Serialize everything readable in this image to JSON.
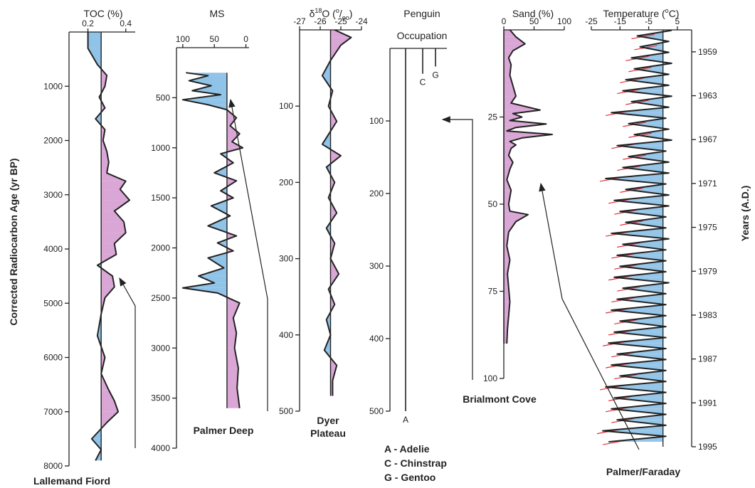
{
  "colors": {
    "warm": "#d9a6d6",
    "cold": "#8fc3e8",
    "ink": "#222222",
    "redline": "#e0303a"
  },
  "y_axis_title": "Corrected Radiocarbon Age (yr BP)",
  "right_axis_title": "Years (A.D.)",
  "chart_data": [
    {
      "type": "area",
      "x_title": "TOC (%)",
      "site": "Lallemand Fiord",
      "xlim": [
        0.1,
        0.45
      ],
      "ylim": [
        0,
        8000
      ],
      "x_reversed": false,
      "baseline": 0.27,
      "x_ticks": [
        "0.2",
        "0.4"
      ],
      "x_tick_values": [
        0.2,
        0.4
      ],
      "y_ticks": [
        "1000",
        "2000",
        "3000",
        "4000",
        "5000",
        "6000",
        "7000",
        "8000"
      ],
      "y_tick_values": [
        1000,
        2000,
        3000,
        4000,
        5000,
        6000,
        7000,
        8000
      ],
      "y": [
        0,
        300,
        600,
        800,
        1000,
        1200,
        1400,
        1600,
        1800,
        2000,
        2200,
        2400,
        2600,
        2750,
        2900,
        3100,
        3300,
        3500,
        3700,
        3900,
        4100,
        4300,
        4500,
        4700,
        4900,
        5200,
        5600,
        6000,
        6300,
        6600,
        6800,
        7000,
        7200,
        7500,
        7700,
        7900
      ],
      "x": [
        0.2,
        0.2,
        0.25,
        0.3,
        0.29,
        0.26,
        0.29,
        0.24,
        0.29,
        0.28,
        0.3,
        0.31,
        0.3,
        0.4,
        0.37,
        0.42,
        0.34,
        0.39,
        0.4,
        0.34,
        0.35,
        0.25,
        0.33,
        0.34,
        0.29,
        0.27,
        0.25,
        0.29,
        0.27,
        0.31,
        0.34,
        0.36,
        0.3,
        0.22,
        0.27,
        0.24
      ]
    },
    {
      "type": "area",
      "x_title": "MS",
      "site": "Palmer Deep",
      "xlim": [
        110,
        -5
      ],
      "ylim": [
        0,
        4000
      ],
      "x_reversed": true,
      "baseline": 30,
      "x_ticks": [
        "100",
        "50",
        "0"
      ],
      "x_tick_values": [
        100,
        50,
        0
      ],
      "y_ticks": [
        "500",
        "1000",
        "1500",
        "2000",
        "2500",
        "3000",
        "3500",
        "4000"
      ],
      "y_tick_values": [
        500,
        1000,
        1500,
        2000,
        2500,
        3000,
        3500,
        4000
      ],
      "y": [
        250,
        280,
        330,
        380,
        430,
        470,
        520,
        570,
        620,
        700,
        780,
        860,
        940,
        1000,
        1060,
        1150,
        1250,
        1330,
        1430,
        1500,
        1580,
        1680,
        1780,
        1880,
        1950,
        2030,
        2100,
        2200,
        2280,
        2350,
        2400,
        2450,
        2550,
        2700,
        2850,
        3000,
        3200,
        3400,
        3600
      ],
      "x": [
        95,
        60,
        90,
        55,
        85,
        40,
        100,
        60,
        30,
        15,
        25,
        10,
        22,
        5,
        40,
        20,
        50,
        15,
        40,
        20,
        55,
        25,
        60,
        15,
        45,
        20,
        60,
        35,
        75,
        50,
        100,
        45,
        10,
        20,
        15,
        18,
        12,
        14,
        10
      ]
    },
    {
      "type": "area",
      "x_title": "δ18O (0/00)",
      "site": "Dyer Plateau",
      "xlim": [
        -27,
        -24
      ],
      "ylim": [
        0,
        500
      ],
      "x_reversed": false,
      "baseline": -25.5,
      "x_ticks": [
        "-27",
        "-26",
        "-25",
        "-24"
      ],
      "x_tick_values": [
        -27,
        -26,
        -25,
        -24
      ],
      "y_ticks": [
        "100",
        "200",
        "300",
        "400",
        "500"
      ],
      "y_tick_values": [
        100,
        200,
        300,
        400,
        500
      ],
      "y": [
        0,
        10,
        20,
        40,
        60,
        80,
        100,
        120,
        150,
        165,
        180,
        200,
        220,
        240,
        260,
        280,
        300,
        320,
        340,
        360,
        380,
        400,
        420,
        440,
        460,
        480
      ],
      "x": [
        -25.3,
        -24.5,
        -25.0,
        -25.5,
        -25.9,
        -25.4,
        -25.6,
        -25.2,
        -25.9,
        -25.0,
        -25.7,
        -25.3,
        -25.6,
        -25.2,
        -25.7,
        -25.3,
        -25.5,
        -25.1,
        -25.6,
        -25.3,
        -25.7,
        -25.5,
        -25.8,
        -25.2,
        -25.4,
        -25.4
      ]
    },
    {
      "type": "line",
      "x_title": "Penguin",
      "x_title_line2": "Occupation",
      "ylim": [
        0,
        500
      ],
      "y_ticks": [
        "100",
        "200",
        "300",
        "400",
        "500"
      ],
      "y_tick_values": [
        100,
        200,
        300,
        400,
        500
      ],
      "series": [
        {
          "name": "A",
          "y_start": 0,
          "y_end": 500
        },
        {
          "name": "C",
          "y_start": 0,
          "y_end": 35
        },
        {
          "name": "G",
          "y_start": 0,
          "y_end": 25
        }
      ],
      "legend": [
        "A - Adelie",
        "C - Chinstrap",
        "G - Gentoo"
      ]
    },
    {
      "type": "area",
      "x_title": "Sand (%)",
      "site": "Brialmont Cove",
      "xlim": [
        0,
        100
      ],
      "ylim": [
        0,
        100
      ],
      "x_reversed": false,
      "baseline": 0,
      "x_ticks": [
        "0",
        "50",
        "100"
      ],
      "x_tick_values": [
        0,
        50,
        100
      ],
      "y_ticks": [
        "25",
        "50",
        "75",
        "100"
      ],
      "y_tick_values": [
        25,
        50,
        75,
        100
      ],
      "y": [
        0,
        2,
        4,
        6,
        8,
        10,
        13,
        16,
        19,
        21,
        23,
        24,
        25,
        26,
        27,
        28,
        29,
        30,
        31,
        32,
        33,
        34,
        36,
        38,
        40,
        43,
        46,
        50,
        52,
        53,
        55,
        58,
        62,
        66,
        70,
        74,
        78,
        82,
        86,
        90
      ],
      "x": [
        10,
        20,
        35,
        15,
        8,
        12,
        10,
        15,
        20,
        12,
        60,
        15,
        30,
        10,
        70,
        20,
        5,
        80,
        30,
        10,
        20,
        12,
        8,
        15,
        10,
        5,
        12,
        8,
        10,
        40,
        20,
        8,
        5,
        10,
        6,
        8,
        10,
        8,
        6,
        5
      ]
    },
    {
      "type": "area",
      "x_title": "Temperature (°C)",
      "site": "Palmer/Faraday",
      "xlim": [
        -25,
        10
      ],
      "ylim": [
        1957,
        1995
      ],
      "x_reversed": false,
      "baseline": 0,
      "x_ticks": [
        "-25",
        "-15",
        "-5",
        "5"
      ],
      "x_tick_values": [
        -25,
        -15,
        -5,
        5
      ],
      "y_ticks": [
        "1995",
        "1991",
        "1987",
        "1983",
        "1979",
        "1975",
        "1971",
        "1967",
        "1963",
        "1959"
      ],
      "y_tick_values": [
        1995,
        1991,
        1987,
        1983,
        1979,
        1975,
        1971,
        1967,
        1963,
        1959
      ],
      "annual_min": [
        -9,
        -8,
        -11,
        -10,
        -13,
        -14,
        -11,
        -18,
        -12,
        -10,
        -16,
        -12,
        -14,
        -20,
        -13,
        -17,
        -15,
        -13,
        -18,
        -14,
        -16,
        -15,
        -17,
        -14,
        -16,
        -18,
        -15,
        -17,
        -19,
        -16,
        -18,
        -15,
        -20,
        -17,
        -18,
        -16,
        -21,
        -19
      ],
      "annual_max": [
        3,
        2,
        2,
        3,
        2,
        2,
        3,
        2,
        1,
        2,
        3,
        1,
        2,
        2,
        1,
        2,
        2,
        1,
        1,
        2,
        1,
        1,
        1,
        2,
        1,
        1,
        1,
        1,
        1,
        1,
        1,
        1,
        1,
        1,
        1,
        1,
        1,
        1
      ]
    }
  ]
}
